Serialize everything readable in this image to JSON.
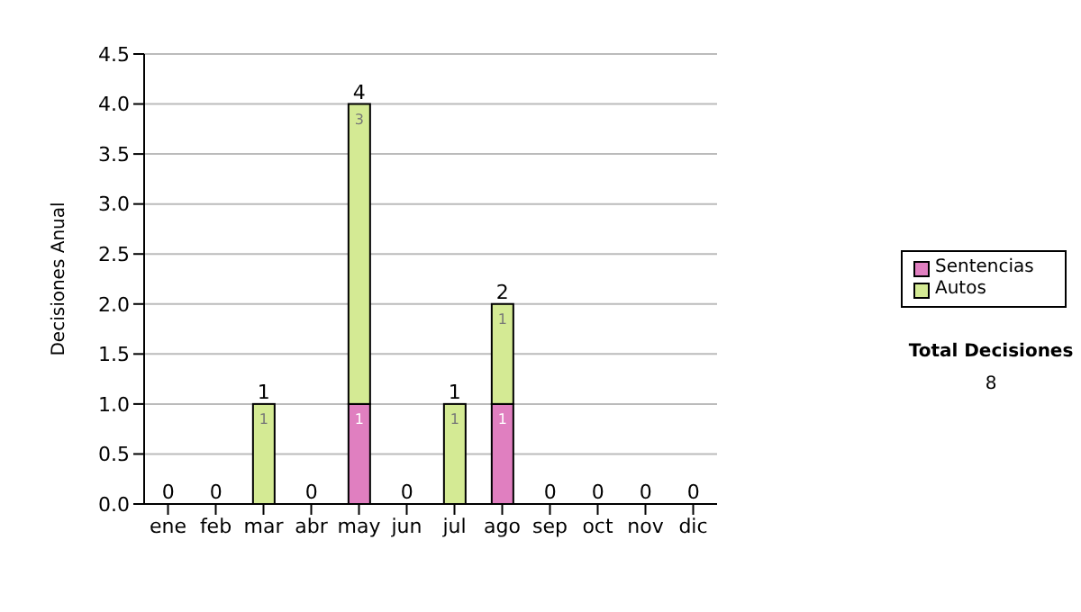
{
  "chart_data": {
    "type": "bar",
    "ylabel": "Decisiones Anual",
    "categories": [
      "ene",
      "feb",
      "mar",
      "abr",
      "may",
      "jun",
      "jul",
      "ago",
      "sep",
      "oct",
      "nov",
      "dic"
    ],
    "stacked": true,
    "series": [
      {
        "name": "Sentencias",
        "color": "#e07fc0",
        "values": [
          0,
          0,
          0,
          0,
          1,
          0,
          0,
          1,
          0,
          0,
          0,
          0
        ],
        "value_labels": [
          null,
          null,
          null,
          null,
          "1",
          null,
          null,
          "1",
          null,
          null,
          null,
          null
        ]
      },
      {
        "name": "Autos",
        "color": "#d4ea94",
        "values": [
          0,
          0,
          1,
          0,
          3,
          0,
          1,
          1,
          0,
          0,
          0,
          0
        ],
        "value_labels": [
          null,
          null,
          "1",
          null,
          "3",
          null,
          "1",
          "1",
          null,
          null,
          null,
          null
        ]
      }
    ],
    "totals": [
      "0",
      "0",
      "1",
      "0",
      "4",
      "0",
      "1",
      "2",
      "0",
      "0",
      "0",
      "0"
    ],
    "ylim": [
      0,
      4.5
    ],
    "yticks": [
      {
        "value": 0,
        "label": "0.0"
      },
      {
        "value": 0.5,
        "label": "0.5"
      },
      {
        "value": 1,
        "label": "1.0"
      },
      {
        "value": 1.5,
        "label": "1.5"
      },
      {
        "value": 2,
        "label": "2.0"
      },
      {
        "value": 2.5,
        "label": "2.5"
      },
      {
        "value": 3,
        "label": "3.0"
      },
      {
        "value": 3.5,
        "label": "3.5"
      },
      {
        "value": 4,
        "label": "4.0"
      },
      {
        "value": 4.5,
        "label": "4.5"
      }
    ],
    "grid": "y",
    "legend": "right",
    "annotations": [
      "Total Decisiones",
      "8"
    ]
  }
}
